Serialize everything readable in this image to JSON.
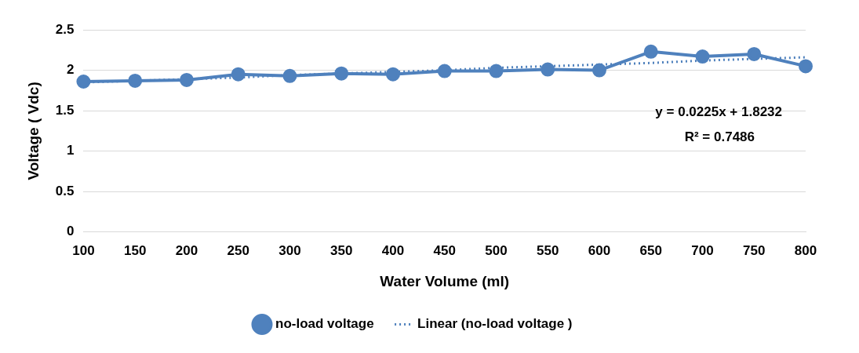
{
  "chart_data": {
    "type": "line",
    "xlabel": "Water Volume (ml)",
    "ylabel": "Voltage ( Vdc)",
    "categories": [
      "100",
      "150",
      "200",
      "250",
      "300",
      "350",
      "400",
      "450",
      "500",
      "550",
      "600",
      "650",
      "700",
      "750",
      "800"
    ],
    "series": [
      {
        "name": "no-load voltage",
        "color": "#4f81bd",
        "marker": "circle",
        "line_style": "solid",
        "values": [
          1.86,
          1.87,
          1.88,
          1.95,
          1.93,
          1.96,
          1.95,
          1.99,
          1.99,
          2.01,
          2.0,
          2.23,
          2.17,
          2.2,
          2.05
        ]
      },
      {
        "name": "Linear (no-load voltage )",
        "color": "#4f81bd",
        "marker": "none",
        "line_style": "dotted",
        "values": [
          1.85,
          1.87,
          1.89,
          1.91,
          1.94,
          1.96,
          1.98,
          2.0,
          2.03,
          2.05,
          2.07,
          2.09,
          2.12,
          2.14,
          2.16
        ]
      }
    ],
    "ylim": [
      0,
      2.5
    ],
    "yticks": [
      0,
      0.5,
      1,
      1.5,
      2,
      2.5
    ],
    "grid": "y",
    "legend": "bottom",
    "annotations": [
      "y = 0.0225x + 1.8232",
      "R² = 0.7486"
    ]
  }
}
